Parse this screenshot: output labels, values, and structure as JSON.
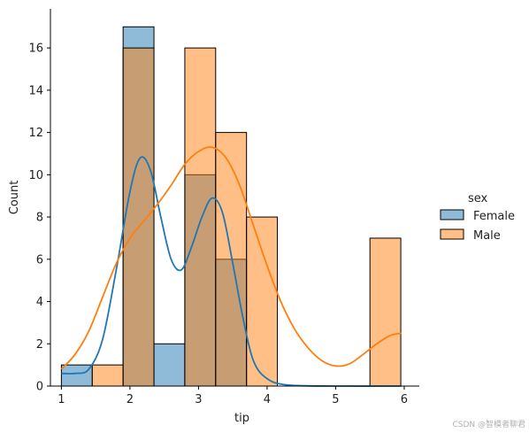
{
  "chart_data": {
    "type": "bar",
    "xlabel": "tip",
    "ylabel": "Count",
    "xlim": [
      0.84,
      6.22
    ],
    "ylim": [
      0,
      17.85
    ],
    "xticks": [
      1,
      2,
      3,
      4,
      5,
      6
    ],
    "yticks": [
      0,
      2,
      4,
      6,
      8,
      10,
      12,
      14,
      16
    ],
    "grid": false,
    "legend": {
      "title": "sex",
      "placement": "right"
    },
    "series": [
      {
        "name": "Female",
        "color": "#1f77b4",
        "bars": [
          {
            "x0": 1.0,
            "x1": 1.45,
            "count": 1
          },
          {
            "x0": 1.9,
            "x1": 2.35,
            "count": 17
          },
          {
            "x0": 2.35,
            "x1": 2.8,
            "count": 2
          },
          {
            "x0": 2.8,
            "x1": 3.25,
            "count": 10
          },
          {
            "x0": 3.25,
            "x1": 3.7,
            "count": 6
          }
        ],
        "kde": [
          [
            1.0,
            0.6
          ],
          [
            1.2,
            0.6
          ],
          [
            1.4,
            0.8
          ],
          [
            1.6,
            2.2
          ],
          [
            1.8,
            5.5
          ],
          [
            2.0,
            9.2
          ],
          [
            2.15,
            10.8
          ],
          [
            2.3,
            10.2
          ],
          [
            2.45,
            8.0
          ],
          [
            2.6,
            6.0
          ],
          [
            2.75,
            5.5
          ],
          [
            2.9,
            6.6
          ],
          [
            3.05,
            8.0
          ],
          [
            3.2,
            8.9
          ],
          [
            3.35,
            8.2
          ],
          [
            3.5,
            5.8
          ],
          [
            3.65,
            3.2
          ],
          [
            3.8,
            1.2
          ],
          [
            4.0,
            0.35
          ],
          [
            4.3,
            0.05
          ],
          [
            5.0,
            0.0
          ],
          [
            5.96,
            0.0
          ]
        ]
      },
      {
        "name": "Male",
        "color": "#ff7f0e",
        "bars": [
          {
            "x0": 1.0,
            "x1": 1.45,
            "count": 0
          },
          {
            "x0": 1.45,
            "x1": 1.9,
            "count": 1
          },
          {
            "x0": 1.9,
            "x1": 2.35,
            "count": 16
          },
          {
            "x0": 2.35,
            "x1": 2.8,
            "count": 0
          },
          {
            "x0": 2.8,
            "x1": 3.25,
            "count": 16
          },
          {
            "x0": 3.25,
            "x1": 3.7,
            "count": 12
          },
          {
            "x0": 3.7,
            "x1": 4.15,
            "count": 8
          },
          {
            "x0": 5.5,
            "x1": 5.95,
            "count": 7
          }
        ],
        "kde": [
          [
            1.0,
            0.8
          ],
          [
            1.2,
            1.5
          ],
          [
            1.4,
            2.6
          ],
          [
            1.6,
            4.2
          ],
          [
            1.8,
            5.8
          ],
          [
            2.0,
            7.0
          ],
          [
            2.2,
            7.8
          ],
          [
            2.4,
            8.6
          ],
          [
            2.6,
            9.5
          ],
          [
            2.8,
            10.5
          ],
          [
            3.0,
            11.1
          ],
          [
            3.2,
            11.3
          ],
          [
            3.4,
            10.8
          ],
          [
            3.6,
            9.5
          ],
          [
            3.8,
            7.6
          ],
          [
            4.0,
            5.7
          ],
          [
            4.2,
            4.0
          ],
          [
            4.4,
            2.7
          ],
          [
            4.6,
            1.8
          ],
          [
            4.8,
            1.2
          ],
          [
            5.0,
            0.95
          ],
          [
            5.2,
            1.05
          ],
          [
            5.4,
            1.5
          ],
          [
            5.6,
            2.0
          ],
          [
            5.8,
            2.4
          ],
          [
            5.96,
            2.5
          ]
        ]
      }
    ]
  },
  "watermark": "CSDN @智模者聊君"
}
